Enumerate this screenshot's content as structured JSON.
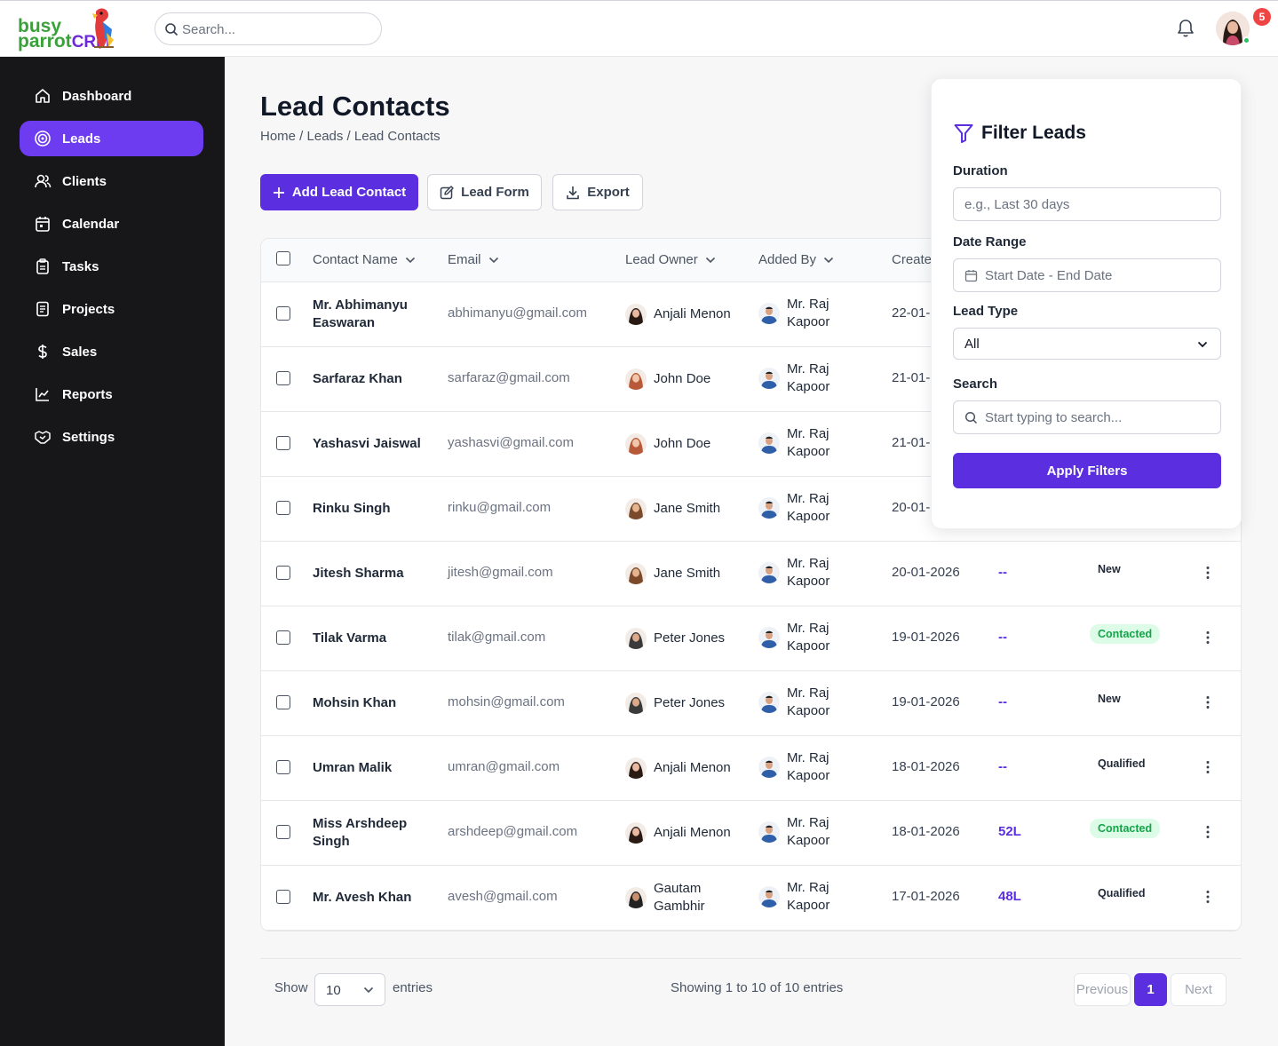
{
  "header": {
    "logo": {
      "line1": "busy",
      "line2": "parrot",
      "line2_suffix": "CRM"
    },
    "search_placeholder": "Search...",
    "notification_count": "5"
  },
  "sidebar": {
    "items": [
      {
        "label": "Dashboard",
        "icon": "home-icon"
      },
      {
        "label": "Leads",
        "icon": "target-icon",
        "active": true
      },
      {
        "label": "Clients",
        "icon": "users-icon"
      },
      {
        "label": "Calendar",
        "icon": "calendar-icon"
      },
      {
        "label": "Tasks",
        "icon": "clipboard-icon"
      },
      {
        "label": "Projects",
        "icon": "document-icon"
      },
      {
        "label": "Sales",
        "icon": "dollar-icon"
      },
      {
        "label": "Reports",
        "icon": "chart-line-icon"
      },
      {
        "label": "Settings",
        "icon": "handshake-icon"
      }
    ]
  },
  "main": {
    "title": "Lead Contacts",
    "breadcrumb": "Home / Leads / Lead Contacts",
    "buttons": {
      "add": "Add Lead Contact",
      "form": "Lead Form",
      "export": "Export"
    }
  },
  "table": {
    "headers": {
      "name": "Contact Name",
      "email": "Email",
      "owner": "Lead Owner",
      "added_by": "Added By",
      "created": "Create"
    },
    "rows": [
      {
        "name": "Mr. Abhimanyu Easwaran",
        "email": "abhimanyu@gmail.com",
        "owner": "Anjali Menon",
        "added_by": "Mr. Raj Kapoor",
        "date": "22-01-",
        "value": "",
        "status": ""
      },
      {
        "name": "Sarfaraz Khan",
        "email": "sarfaraz@gmail.com",
        "owner": "John Doe",
        "added_by": "Mr. Raj Kapoor",
        "date": "21-01-",
        "value": "",
        "status": ""
      },
      {
        "name": "Yashasvi Jaiswal",
        "email": "yashasvi@gmail.com",
        "owner": "John Doe",
        "added_by": "Mr. Raj Kapoor",
        "date": "21-01-",
        "value": "",
        "status": ""
      },
      {
        "name": "Rinku Singh",
        "email": "rinku@gmail.com",
        "owner": "Jane Smith",
        "added_by": "Mr. Raj Kapoor",
        "date": "20-01-",
        "value": "",
        "status": ""
      },
      {
        "name": "Jitesh Sharma",
        "email": "jitesh@gmail.com",
        "owner": "Jane Smith",
        "added_by": "Mr. Raj Kapoor",
        "date": "20-01-2026",
        "value": "--",
        "status": "New"
      },
      {
        "name": "Tilak Varma",
        "email": "tilak@gmail.com",
        "owner": "Peter Jones",
        "added_by": "Mr. Raj Kapoor",
        "date": "19-01-2026",
        "value": "--",
        "status": "Contacted"
      },
      {
        "name": "Mohsin Khan",
        "email": "mohsin@gmail.com",
        "owner": "Peter Jones",
        "added_by": "Mr. Raj Kapoor",
        "date": "19-01-2026",
        "value": "--",
        "status": "New"
      },
      {
        "name": "Umran Malik",
        "email": "umran@gmail.com",
        "owner": "Anjali Menon",
        "added_by": "Mr. Raj Kapoor",
        "date": "18-01-2026",
        "value": "--",
        "status": "Qualified"
      },
      {
        "name": "Miss Arshdeep Singh",
        "email": "arshdeep@gmail.com",
        "owner": "Anjali Menon",
        "added_by": "Mr. Raj Kapoor",
        "date": "18-01-2026",
        "value": "52L",
        "status": "Contacted"
      },
      {
        "name": "Mr. Avesh Khan",
        "email": "avesh@gmail.com",
        "owner": "Gautam Gambhir",
        "added_by": "Mr. Raj Kapoor",
        "date": "17-01-2026",
        "value": "48L",
        "status": "Qualified"
      }
    ]
  },
  "footer": {
    "show_label": "Show",
    "page_size": "10",
    "entries_label": "entries",
    "showing_text": "Showing 1 to 10 of 10 entries",
    "prev": "Previous",
    "current_page": "1",
    "next": "Next"
  },
  "filter": {
    "title": "Filter Leads",
    "duration_label": "Duration",
    "duration_placeholder": "e.g., Last 30 days",
    "date_range_label": "Date Range",
    "date_range_placeholder": "Start Date - End Date",
    "lead_type_label": "Lead Type",
    "lead_type_value": "All",
    "search_label": "Search",
    "search_placeholder": "Start typing to search...",
    "apply": "Apply Filters"
  },
  "colors": {
    "accent": "#5b2ee0",
    "sidebar_bg": "#17171a",
    "contacted_green": "#16a34a"
  }
}
